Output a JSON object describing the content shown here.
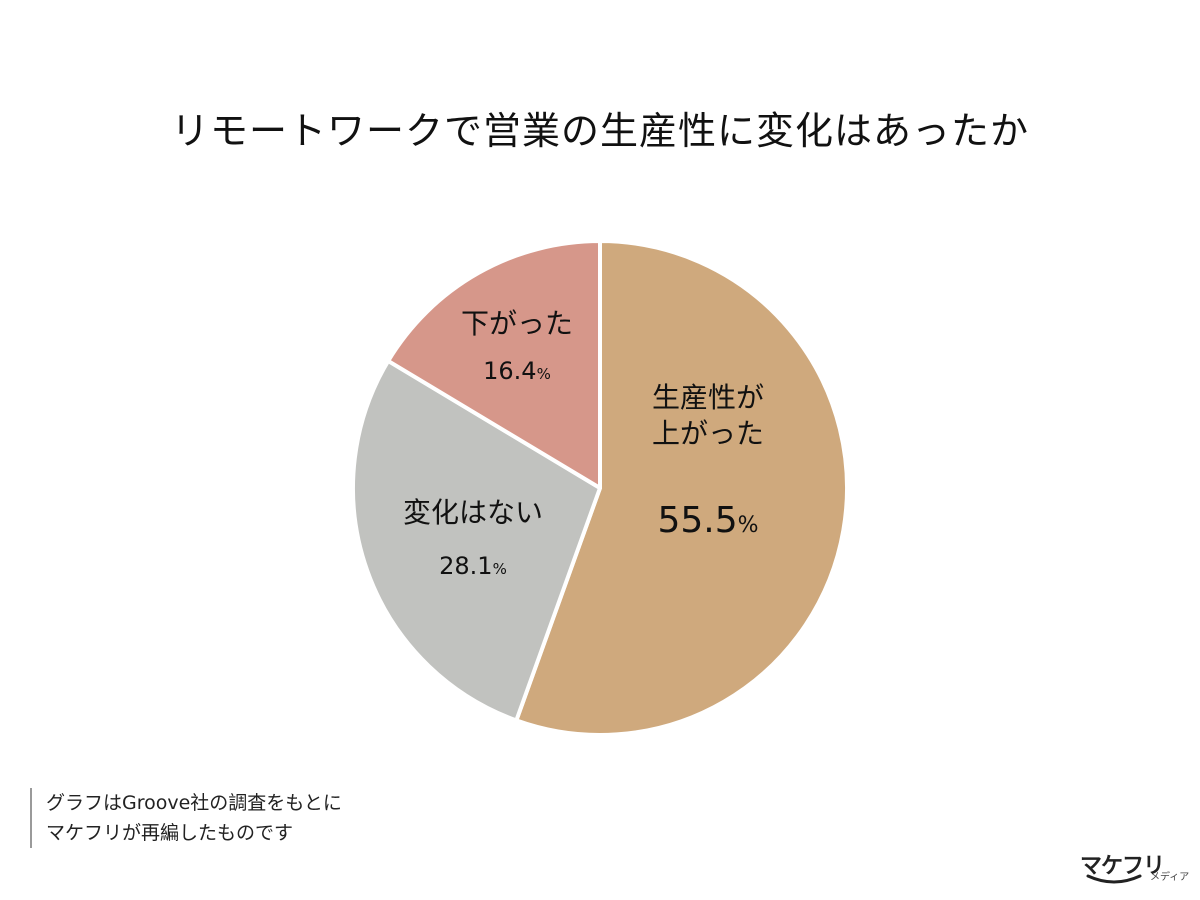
{
  "title": "リモートワークで営業の生産性に変化はあったか",
  "note": {
    "line1": "グラフはGroove社の調査をもとに",
    "line2": "マケフリが再編したものです"
  },
  "logo": {
    "main": "マケフリ",
    "sub": "メディア"
  },
  "chart_data": {
    "type": "pie",
    "start": "12 o'clock",
    "direction": "clockwise",
    "slices": [
      {
        "label_lines": [
          "生産性が",
          "上がった"
        ],
        "value": 55.5,
        "display": "55.5",
        "color": "#cfa97d"
      },
      {
        "label_lines": [
          "変化はない"
        ],
        "value": 28.1,
        "display": "28.1",
        "color": "#c1c2bf"
      },
      {
        "label_lines": [
          "下がった"
        ],
        "value": 16.4,
        "display": "16.4",
        "color": "#d6978a"
      }
    ],
    "unit": "%"
  }
}
